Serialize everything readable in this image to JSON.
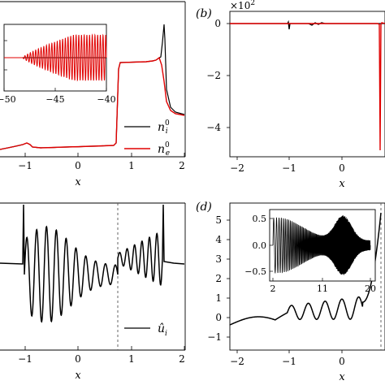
{
  "panels": {
    "a": {
      "xlabel": "x",
      "x_ticks": [
        "−1",
        "0",
        "1",
        "2"
      ],
      "legend": [
        "n",
        "n"
      ],
      "legend_sup": [
        "0",
        "0"
      ],
      "legend_sub": [
        "i",
        "e"
      ],
      "inset_x_ticks": [
        "−50",
        "−45",
        "−40"
      ]
    },
    "b": {
      "label": "(b)",
      "offset_text": "×10",
      "offset_exp": "2",
      "xlabel": "x",
      "x_ticks": [
        "−2",
        "−1",
        "0"
      ],
      "y_ticks": [
        "0",
        "−2",
        "−4"
      ]
    },
    "c": {
      "xlabel": "x",
      "x_ticks": [
        "−1",
        "0",
        "1",
        "2"
      ],
      "legend": "û",
      "legend_sub": "i"
    },
    "d": {
      "label": "(d)",
      "xlabel": "x",
      "x_ticks": [
        "−2",
        "−1",
        "0"
      ],
      "y_ticks": [
        "5",
        "4",
        "3",
        "2",
        "1",
        "0",
        "−1"
      ],
      "inset_x_ticks": [
        "2",
        "11",
        "20"
      ],
      "inset_y_ticks": [
        "0.5",
        "0.0",
        "−0.5"
      ]
    }
  },
  "colors": {
    "ion": "#000000",
    "electron": "#e00000",
    "dashed": "#555555"
  },
  "chart_data": [
    {
      "panel": "a",
      "type": "line",
      "xlabel": "x",
      "xlim": [
        -1.55,
        2.0
      ],
      "series": [
        {
          "name": "n_i^0",
          "color": "#000000",
          "x": [
            -1.55,
            -1.0,
            0.0,
            0.7,
            0.76,
            1.5,
            1.62,
            1.7,
            1.76,
            1.85,
            2.0
          ],
          "y": [
            0.0,
            0.02,
            0.03,
            0.04,
            0.75,
            0.77,
            0.8,
            1.0,
            0.35,
            0.3,
            0.3
          ]
        },
        {
          "name": "n_e^0",
          "color": "#e00000",
          "x": [
            -1.55,
            -1.0,
            0.0,
            0.7,
            0.76,
            1.5,
            1.62,
            1.7,
            1.76,
            1.85,
            2.0
          ],
          "y": [
            0.0,
            0.02,
            0.03,
            0.04,
            0.75,
            0.77,
            0.79,
            0.62,
            0.32,
            0.3,
            0.3
          ]
        }
      ],
      "inset": {
        "type": "line",
        "xlim": [
          -50,
          -40
        ],
        "series": [
          {
            "name": "n_e^0",
            "color": "#e00000",
            "note": "oscillation growing toward x=-40"
          },
          {
            "name": "n_i^0",
            "color": "#000000",
            "value": 0.0
          }
        ]
      }
    },
    {
      "panel": "b",
      "type": "line",
      "xlabel": "x",
      "xlim": [
        -2,
        0.9
      ],
      "ylim": [
        -5.0,
        0.2
      ],
      "y_scale_factor": 100,
      "series": [
        {
          "color": "#000000",
          "x": [
            -2.0,
            -1.0,
            -1.0,
            0.6,
            0.85
          ],
          "y": [
            0.0,
            0.0,
            -0.12,
            0.0,
            0.0
          ]
        },
        {
          "color": "#e00000",
          "x": [
            -2.0,
            0.7,
            0.77,
            0.79,
            0.85
          ],
          "y": [
            0.0,
            0.0,
            -4.85,
            0.0,
            0.0
          ]
        }
      ]
    },
    {
      "panel": "c",
      "type": "line",
      "xlabel": "x",
      "xlim": [
        -1.55,
        2.0
      ],
      "vline": 0.75,
      "series": [
        {
          "name": "û_i",
          "color": "#000000",
          "x": [
            -1.55,
            -1.1,
            -1.0,
            0.0,
            0.75,
            1.5,
            1.7,
            2.0
          ],
          "y": [
            0.0,
            0.0,
            1.0,
            0.2,
            -0.4,
            0.6,
            0.0,
            0.0
          ]
        }
      ]
    },
    {
      "panel": "d",
      "type": "line",
      "xlabel": "x",
      "xlim": [
        -2,
        1.0
      ],
      "ylim": [
        -1.2,
        5.9
      ],
      "vline": 0.75,
      "series": [
        {
          "color": "#000000",
          "x": [
            -2.0,
            -1.8,
            -1.5,
            -1.1,
            -0.8,
            -0.6,
            0.0,
            0.3,
            0.6,
            0.7,
            0.78,
            0.85
          ],
          "y": [
            -0.4,
            -0.7,
            -0.6,
            -0.2,
            -0.1,
            -0.8,
            0.3,
            0.6,
            0.7,
            2.0,
            4.0,
            4.5
          ]
        }
      ],
      "inset": {
        "type": "line",
        "xlim": [
          2,
          21
        ],
        "ylim": [
          -0.7,
          0.7
        ],
        "x_ticks": [
          2,
          11,
          20
        ],
        "y_ticks": [
          0.5,
          0.0,
          -0.5
        ]
      }
    }
  ]
}
